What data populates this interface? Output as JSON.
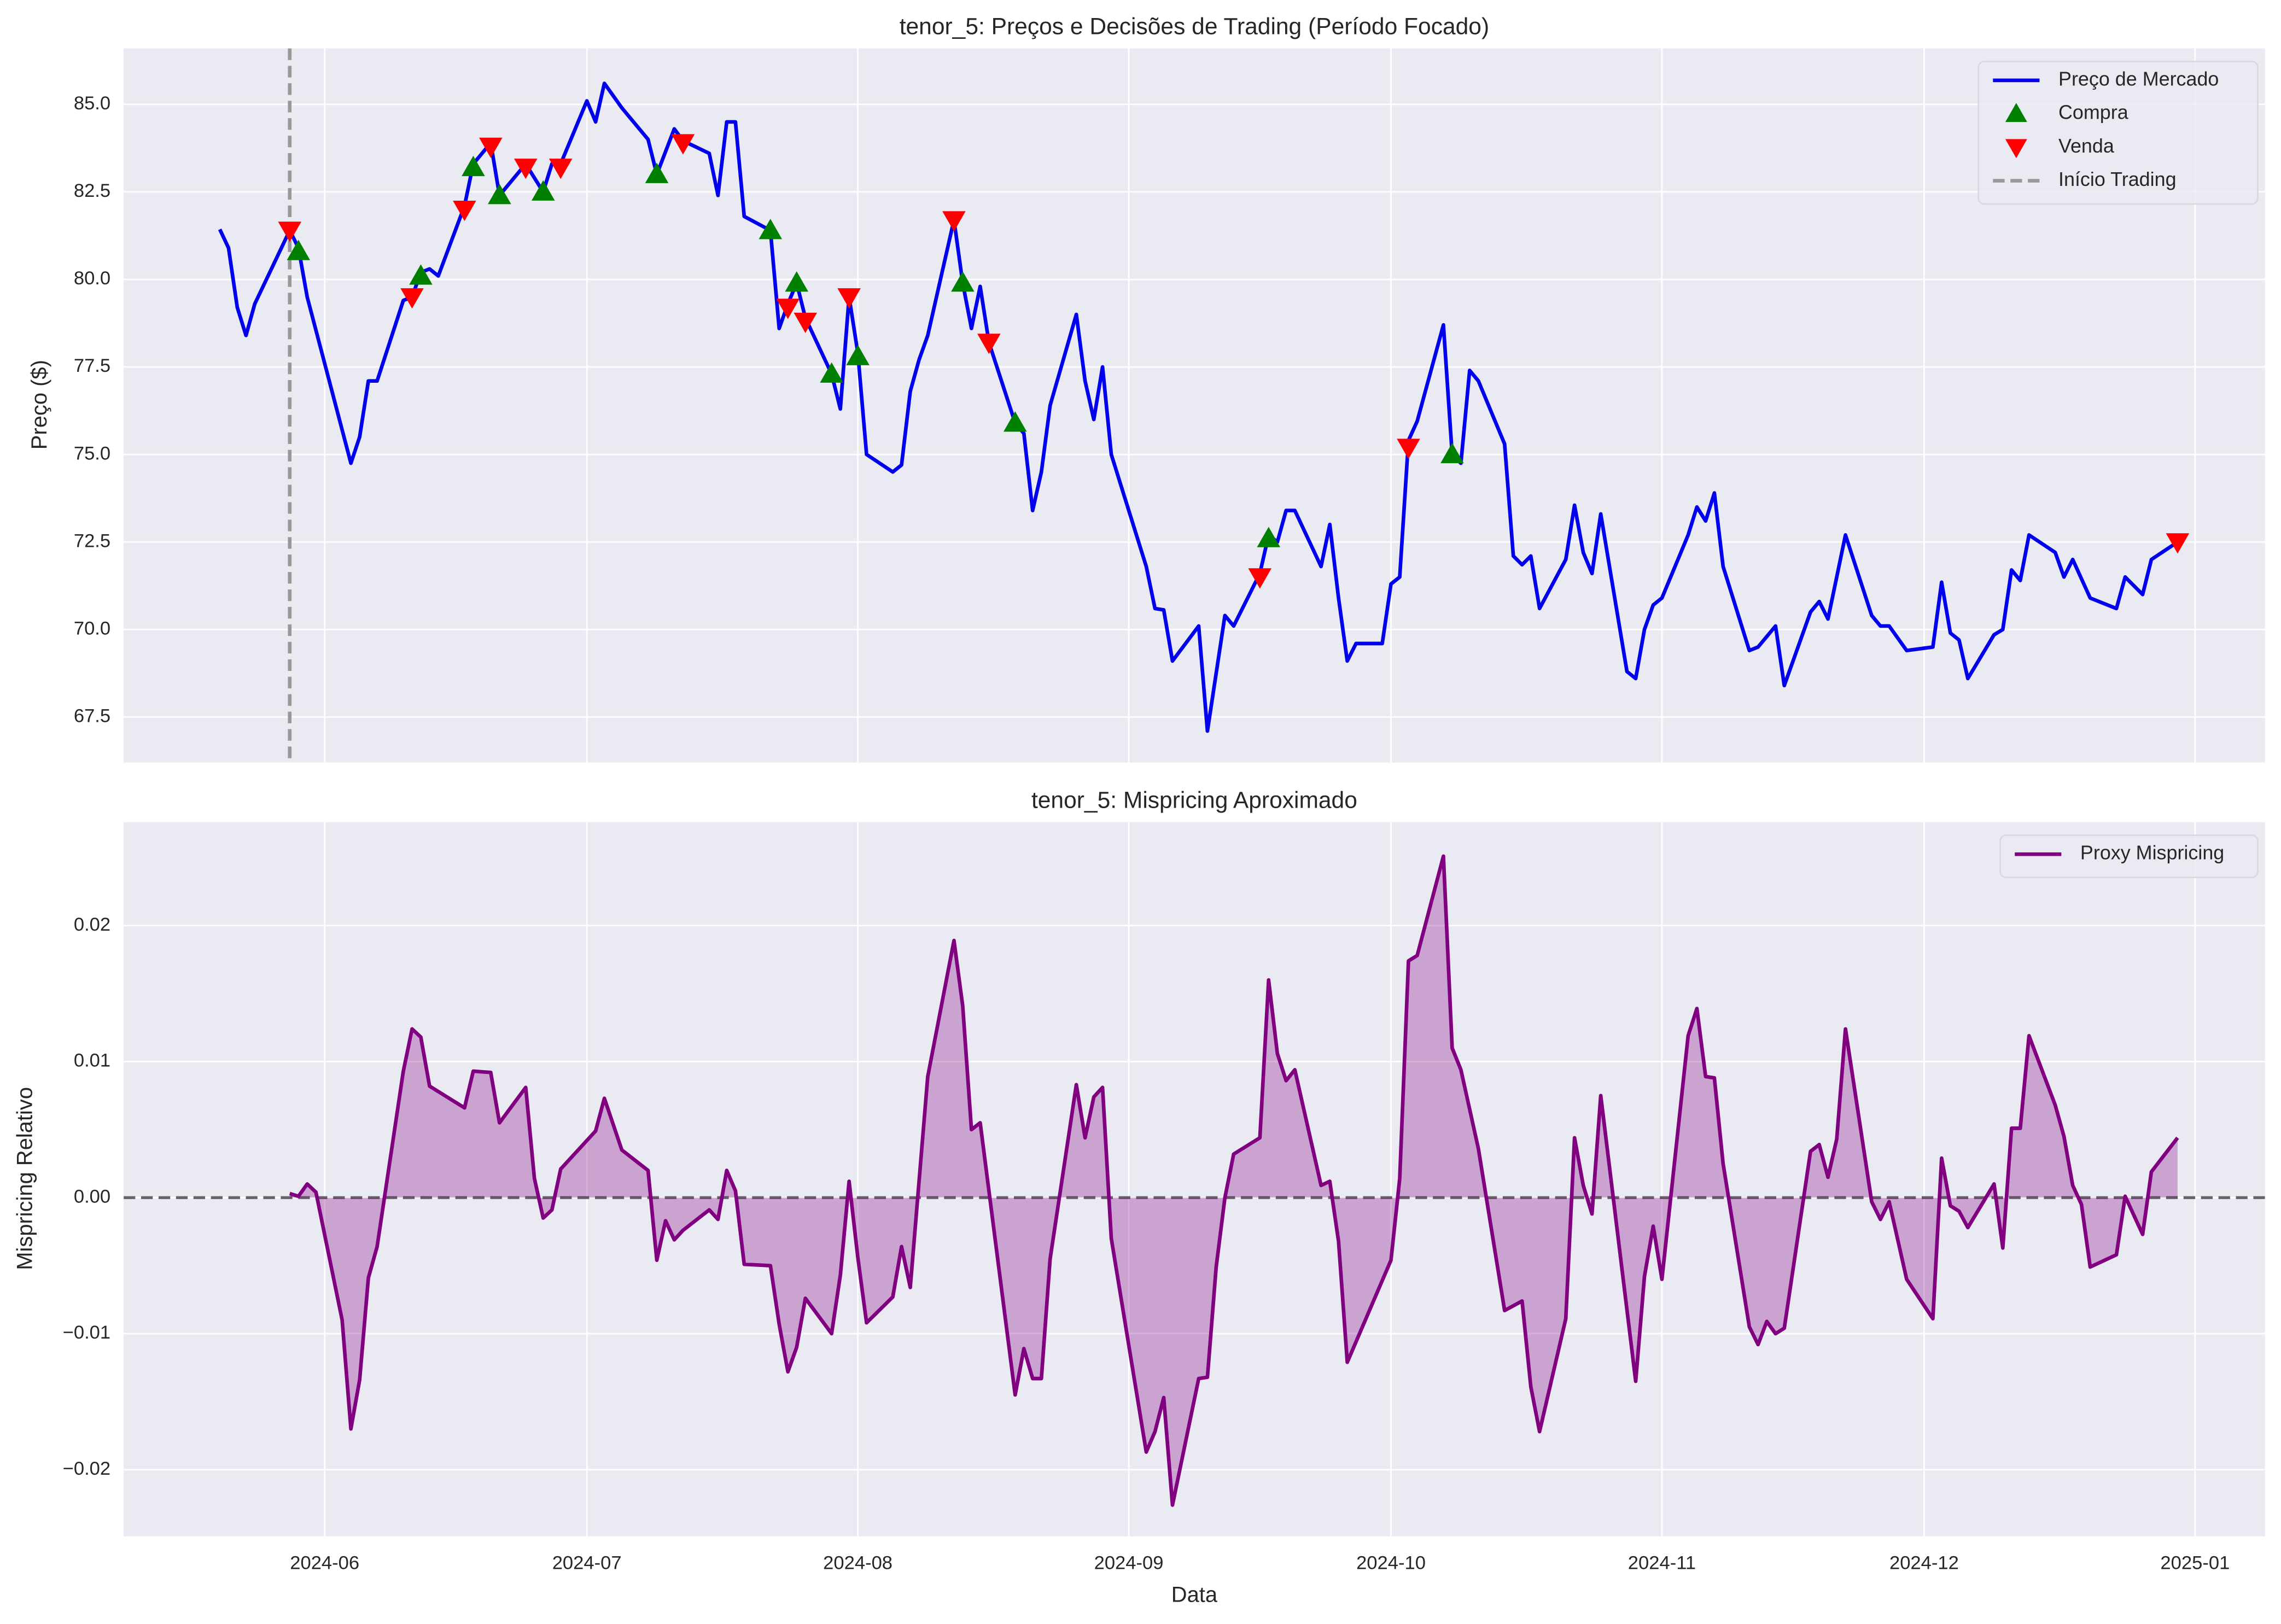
{
  "chart_data": [
    {
      "type": "line",
      "title": "tenor_5: Preços e Decisões de Trading (Período Focado)",
      "ylabel": "Preço ($)",
      "xlim": [
        "2024-05-09",
        "2025-01-09"
      ],
      "ylim": [
        66.2,
        86.6
      ],
      "yticks": [
        67.5,
        {
          "value": 70,
          "label": "70.0"
        },
        72.5,
        {
          "value": 75,
          "label": "75.0"
        },
        77.5,
        {
          "value": 80,
          "label": "80.0"
        },
        82.5,
        {
          "value": 85,
          "label": "85.0"
        }
      ],
      "grid": true,
      "legend": "upper right",
      "x": [
        "2024-05-20",
        "2024-05-21",
        "2024-05-22",
        "2024-05-23",
        "2024-05-24",
        "2024-05-28",
        "2024-05-29",
        "2024-05-30",
        "2024-06-04",
        "2024-06-05",
        "2024-06-06",
        "2024-06-07",
        "2024-06-10",
        "2024-06-11",
        "2024-06-12",
        "2024-06-13",
        "2024-06-14",
        "2024-06-17",
        "2024-06-18",
        "2024-06-20",
        "2024-06-21",
        "2024-06-24",
        "2024-06-25",
        "2024-06-26",
        "2024-06-27",
        "2024-06-28",
        "2024-07-01",
        "2024-07-02",
        "2024-07-03",
        "2024-07-05",
        "2024-07-08",
        "2024-07-09",
        "2024-07-11",
        "2024-07-12",
        "2024-07-15",
        "2024-07-16",
        "2024-07-17",
        "2024-07-18",
        "2024-07-19",
        "2024-07-22",
        "2024-07-23",
        "2024-07-24",
        "2024-07-25",
        "2024-07-26",
        "2024-07-29",
        "2024-07-30",
        "2024-07-31",
        "2024-08-01",
        "2024-08-02",
        "2024-08-05",
        "2024-08-06",
        "2024-08-07",
        "2024-08-08",
        "2024-08-09",
        "2024-08-12",
        "2024-08-13",
        "2024-08-14",
        "2024-08-15",
        "2024-08-16",
        "2024-08-19",
        "2024-08-20",
        "2024-08-21",
        "2024-08-22",
        "2024-08-23",
        "2024-08-26",
        "2024-08-27",
        "2024-08-28",
        "2024-08-29",
        "2024-08-30",
        "2024-09-03",
        "2024-09-04",
        "2024-09-05",
        "2024-09-06",
        "2024-09-09",
        "2024-09-10",
        "2024-09-12",
        "2024-09-13",
        "2024-09-16",
        "2024-09-17",
        "2024-09-18",
        "2024-09-19",
        "2024-09-20",
        "2024-09-23",
        "2024-09-24",
        "2024-09-25",
        "2024-09-26",
        "2024-09-27",
        "2024-09-30",
        "2024-10-01",
        "2024-10-02",
        "2024-10-03",
        "2024-10-04",
        "2024-10-07",
        "2024-10-08",
        "2024-10-09",
        "2024-10-10",
        "2024-10-11",
        "2024-10-14",
        "2024-10-15",
        "2024-10-16",
        "2024-10-17",
        "2024-10-18",
        "2024-10-21",
        "2024-10-22",
        "2024-10-23",
        "2024-10-24",
        "2024-10-25",
        "2024-10-28",
        "2024-10-29",
        "2024-10-30",
        "2024-10-31",
        "2024-11-01",
        "2024-11-04",
        "2024-11-05",
        "2024-11-06",
        "2024-11-07",
        "2024-11-08",
        "2024-11-11",
        "2024-11-12",
        "2024-11-14",
        "2024-11-15",
        "2024-11-18",
        "2024-11-19",
        "2024-11-20",
        "2024-11-22",
        "2024-11-25",
        "2024-11-26",
        "2024-11-27",
        "2024-11-29",
        "2024-12-02",
        "2024-12-03",
        "2024-12-04",
        "2024-12-05",
        "2024-12-06",
        "2024-12-09",
        "2024-12-10",
        "2024-12-11",
        "2024-12-12",
        "2024-12-13",
        "2024-12-16",
        "2024-12-17",
        "2024-12-18",
        "2024-12-20",
        "2024-12-23",
        "2024-12-24",
        "2024-12-26",
        "2024-12-27",
        "2024-12-30"
      ],
      "series": [
        {
          "name": "Preço de Mercado",
          "color": "#0000ee",
          "values": [
            81.43,
            80.9,
            79.2,
            78.4,
            79.3,
            81.4,
            80.9,
            79.5,
            74.75,
            75.5,
            77.1,
            77.1,
            79.4,
            79.5,
            80.2,
            80.3,
            80.1,
            82.1,
            83.3,
            83.9,
            82.4,
            83.3,
            82.9,
            82.5,
            83.3,
            83.3,
            85.1,
            84.5,
            85.6,
            84.9,
            84.0,
            83.0,
            84.3,
            83.96,
            83.6,
            82.4,
            84.5,
            84.5,
            81.8,
            81.4,
            78.6,
            79.3,
            79.9,
            78.9,
            77.3,
            76.3,
            79.5,
            77.9,
            75.0,
            74.5,
            74.7,
            76.8,
            77.7,
            78.4,
            81.7,
            79.9,
            78.6,
            79.8,
            78.2,
            75.9,
            75.6,
            73.4,
            74.5,
            76.4,
            79.0,
            77.1,
            76.0,
            77.5,
            75.0,
            71.8,
            70.6,
            70.56,
            69.1,
            70.1,
            67.1,
            70.4,
            70.1,
            71.6,
            72.7,
            72.5,
            73.4,
            73.4,
            71.8,
            73.0,
            70.9,
            69.1,
            69.6,
            69.6,
            71.3,
            71.5,
            75.4,
            75.95,
            78.7,
            75.0,
            74.75,
            77.4,
            77.1,
            75.3,
            72.1,
            71.85,
            72.1,
            70.6,
            72.0,
            73.55,
            72.2,
            71.6,
            73.3,
            68.8,
            68.6,
            70.0,
            70.7,
            70.9,
            72.7,
            73.5,
            73.1,
            73.9,
            71.8,
            69.4,
            69.5,
            70.1,
            68.4,
            70.5,
            70.8,
            70.3,
            72.7,
            70.4,
            70.1,
            70.1,
            69.4,
            69.5,
            71.35,
            69.9,
            69.7,
            68.6,
            69.85,
            70.0,
            71.7,
            71.4,
            72.7,
            72.2,
            71.5,
            72.0,
            70.9,
            70.6,
            71.5,
            71.0,
            72.0,
            72.5
          ]
        },
        {
          "name": "Compra",
          "color": "#008000",
          "marker": "triangle-up",
          "x": [
            "2024-05-29",
            "2024-06-12",
            "2024-06-18",
            "2024-06-21",
            "2024-06-26",
            "2024-07-09",
            "2024-07-22",
            "2024-07-25",
            "2024-07-29",
            "2024-08-01",
            "2024-08-13",
            "2024-08-19",
            "2024-09-17",
            "2024-10-08"
          ],
          "values": [
            80.8,
            80.1,
            83.2,
            82.4,
            82.5,
            83.0,
            81.4,
            79.9,
            77.3,
            77.8,
            79.9,
            75.9,
            72.6,
            75.0
          ]
        },
        {
          "name": "Venda",
          "color": "#ff0000",
          "marker": "triangle-down",
          "x": [
            "2024-05-28",
            "2024-06-11",
            "2024-06-17",
            "2024-06-20",
            "2024-06-24",
            "2024-06-28",
            "2024-07-12",
            "2024-07-24",
            "2024-07-26",
            "2024-07-31",
            "2024-08-12",
            "2024-08-16",
            "2024-09-16",
            "2024-10-03",
            "2024-12-30"
          ],
          "values": [
            81.4,
            79.5,
            82.0,
            83.8,
            83.2,
            83.2,
            83.9,
            79.2,
            78.8,
            79.5,
            81.7,
            78.2,
            71.5,
            75.2,
            72.5
          ]
        }
      ],
      "vline": {
        "name": "Início Trading",
        "x": "2024-05-28",
        "color": "#999999"
      }
    },
    {
      "type": "area",
      "title": "tenor_5: Mispricing Aproximado",
      "xlabel": "Data",
      "ylabel": "Mispricing Relativo",
      "xlim": [
        "2024-05-09",
        "2025-01-09"
      ],
      "ylim": [
        -0.0249,
        0.0276
      ],
      "yticks": [
        {
          "value": -0.02,
          "label": "−0.02"
        },
        {
          "value": -0.01,
          "label": "−0.01"
        },
        {
          "value": 0,
          "label": "0.00"
        },
        0.01,
        0.02
      ],
      "xticks": [
        {
          "value": "2024-06-01",
          "label": "2024-06"
        },
        {
          "value": "2024-07-01",
          "label": "2024-07"
        },
        {
          "value": "2024-08-01",
          "label": "2024-08"
        },
        {
          "value": "2024-09-01",
          "label": "2024-09"
        },
        {
          "value": "2024-10-01",
          "label": "2024-10"
        },
        {
          "value": "2024-11-01",
          "label": "2024-11"
        },
        {
          "value": "2024-12-01",
          "label": "2024-12"
        },
        {
          "value": "2025-01-01",
          "label": "2025-01"
        }
      ],
      "grid": true,
      "legend": "upper right",
      "zero_line": true,
      "x": [
        "2024-05-28",
        "2024-05-29",
        "2024-05-30",
        "2024-05-31",
        "2024-06-03",
        "2024-06-04",
        "2024-06-05",
        "2024-06-06",
        "2024-06-07",
        "2024-06-10",
        "2024-06-11",
        "2024-06-12",
        "2024-06-13",
        "2024-06-17",
        "2024-06-18",
        "2024-06-20",
        "2024-06-21",
        "2024-06-24",
        "2024-06-25",
        "2024-06-26",
        "2024-06-27",
        "2024-06-28",
        "2024-07-01",
        "2024-07-02",
        "2024-07-03",
        "2024-07-05",
        "2024-07-08",
        "2024-07-09",
        "2024-07-10",
        "2024-07-11",
        "2024-07-12",
        "2024-07-15",
        "2024-07-16",
        "2024-07-17",
        "2024-07-18",
        "2024-07-19",
        "2024-07-22",
        "2024-07-23",
        "2024-07-24",
        "2024-07-25",
        "2024-07-26",
        "2024-07-29",
        "2024-07-30",
        "2024-07-31",
        "2024-08-01",
        "2024-08-02",
        "2024-08-05",
        "2024-08-06",
        "2024-08-07",
        "2024-08-09",
        "2024-08-12",
        "2024-08-13",
        "2024-08-14",
        "2024-08-15",
        "2024-08-19",
        "2024-08-20",
        "2024-08-21",
        "2024-08-22",
        "2024-08-23",
        "2024-08-26",
        "2024-08-27",
        "2024-08-28",
        "2024-08-29",
        "2024-08-30",
        "2024-09-03",
        "2024-09-04",
        "2024-09-05",
        "2024-09-06",
        "2024-09-09",
        "2024-09-10",
        "2024-09-11",
        "2024-09-12",
        "2024-09-13",
        "2024-09-16",
        "2024-09-17",
        "2024-09-18",
        "2024-09-19",
        "2024-09-20",
        "2024-09-23",
        "2024-09-24",
        "2024-09-25",
        "2024-09-26",
        "2024-10-01",
        "2024-10-02",
        "2024-10-03",
        "2024-10-04",
        "2024-10-07",
        "2024-10-08",
        "2024-10-09",
        "2024-10-10",
        "2024-10-11",
        "2024-10-14",
        "2024-10-16",
        "2024-10-17",
        "2024-10-18",
        "2024-10-21",
        "2024-10-22",
        "2024-10-23",
        "2024-10-24",
        "2024-10-25",
        "2024-10-29",
        "2024-10-30",
        "2024-10-31",
        "2024-11-01",
        "2024-11-04",
        "2024-11-05",
        "2024-11-06",
        "2024-11-07",
        "2024-11-08",
        "2024-11-11",
        "2024-11-12",
        "2024-11-13",
        "2024-11-14",
        "2024-11-15",
        "2024-11-18",
        "2024-11-19",
        "2024-11-20",
        "2024-11-21",
        "2024-11-22",
        "2024-11-25",
        "2024-11-26",
        "2024-11-27",
        "2024-11-29",
        "2024-12-02",
        "2024-12-03",
        "2024-12-04",
        "2024-12-05",
        "2024-12-06",
        "2024-12-09",
        "2024-12-10",
        "2024-12-11",
        "2024-12-12",
        "2024-12-13",
        "2024-12-16",
        "2024-12-17",
        "2024-12-18",
        "2024-12-19",
        "2024-12-20",
        "2024-12-23",
        "2024-12-24",
        "2024-12-26",
        "2024-12-27",
        "2024-12-30"
      ],
      "series": [
        {
          "name": "Proxy Mispricing",
          "color": "#800080",
          "values": [
            0.0003,
            0.0001,
            0.001,
            0.0004,
            -0.009,
            -0.017,
            -0.0134,
            -0.0059,
            -0.0036,
            0.0093,
            0.0124,
            0.0118,
            0.0082,
            0.0066,
            0.0093,
            0.0092,
            0.0055,
            0.0081,
            0.0014,
            -0.0015,
            -0.0009,
            0.0021,
            0.0042,
            0.0049,
            0.0073,
            0.0035,
            0.002,
            -0.0046,
            -0.0017,
            -0.0031,
            -0.0024,
            -0.0009,
            -0.0016,
            0.002,
            0.0005,
            -0.0049,
            -0.005,
            -0.0093,
            -0.0128,
            -0.011,
            -0.0074,
            -0.01,
            -0.0057,
            0.0012,
            -0.0044,
            -0.0092,
            -0.0073,
            -0.0036,
            -0.0066,
            0.0089,
            0.0189,
            0.0141,
            0.005,
            0.0055,
            -0.0145,
            -0.0111,
            -0.0133,
            -0.0133,
            -0.0045,
            0.0083,
            0.0044,
            0.0074,
            0.0081,
            -0.003,
            -0.0187,
            -0.0172,
            -0.0147,
            -0.0226,
            -0.0133,
            -0.0132,
            -0.0051,
            0,
            0.0032,
            0.0044,
            0.016,
            0.0106,
            0.0086,
            0.0094,
            0.0009,
            0.0012,
            -0.0032,
            -0.0121,
            -0.0046,
            0.0014,
            0.0174,
            0.0178,
            0.0251,
            0.011,
            0.0094,
            0.0065,
            0.0036,
            -0.0083,
            -0.0076,
            -0.0139,
            -0.0172,
            -0.0089,
            0.0044,
            0.0009,
            -0.0012,
            0.0075,
            -0.0135,
            -0.0058,
            -0.0021,
            -0.006,
            0.0119,
            0.0139,
            0.0089,
            0.0088,
            0.0025,
            -0.0095,
            -0.0108,
            -0.0091,
            -0.01,
            -0.0096,
            0.0034,
            0.0039,
            0.0015,
            0.0043,
            0.0124,
            -0.0003,
            -0.0016,
            -0.0003,
            -0.006,
            -0.0089,
            0.0029,
            -0.0006,
            -0.001,
            -0.0022,
            0.001,
            -0.0037,
            0.0051,
            0.0051,
            0.0119,
            0.0068,
            0.0045,
            0.0009,
            -0.0005,
            -0.0051,
            -0.0042,
            0.0001,
            -0.0027,
            0.0019,
            0.0044
          ]
        }
      ]
    }
  ]
}
